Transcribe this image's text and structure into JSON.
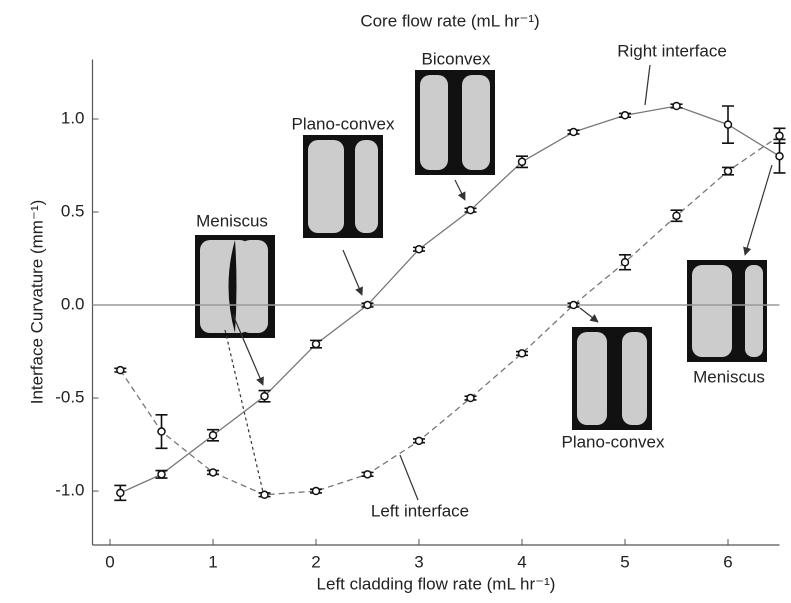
{
  "chart_data": {
    "type": "line",
    "top_axis_label": "Core flow rate (mL hr⁻¹)",
    "x_label": "Left cladding flow rate (mL hr⁻¹)",
    "y_label": "Interface Curvature (mm⁻¹)",
    "xlim": [
      -0.17,
      6.5
    ],
    "ylim": [
      -1.29,
      1.32
    ],
    "xticks": [
      0,
      1,
      2,
      3,
      4,
      5,
      6
    ],
    "yticks": [
      {
        "value": -1,
        "label": "-1.0"
      },
      -0.5,
      {
        "value": 0,
        "label": "0.0"
      },
      0.5,
      {
        "value": 1,
        "label": "1.0"
      }
    ],
    "zero_line": true,
    "x": [
      0.1,
      0.5,
      1,
      1.5,
      2,
      2.5,
      3,
      3.5,
      4,
      4.5,
      5,
      5.5,
      6,
      6.5
    ],
    "series": [
      {
        "name": "Right interface",
        "color": "#777777",
        "dash": false,
        "values": [
          -1.01,
          -0.91,
          -0.7,
          -0.49,
          -0.21,
          0,
          0.3,
          0.51,
          0.77,
          0.93,
          1.02,
          1.07,
          0.97,
          0.8
        ],
        "errors": [
          0.04,
          0.02,
          0.03,
          0.03,
          0.02,
          0.01,
          0.01,
          0.01,
          0.03,
          0.01,
          0.01,
          0.01,
          0.1,
          0.09
        ]
      },
      {
        "name": "Left interface",
        "color": "#777777",
        "dash": true,
        "values": [
          -0.35,
          -0.68,
          -0.9,
          -1.02,
          -1,
          -0.91,
          -0.73,
          -0.5,
          -0.26,
          0,
          0.23,
          0.48,
          0.72,
          0.91
        ],
        "errors": [
          0.01,
          0.09,
          0.01,
          0.01,
          0.01,
          0.01,
          0.01,
          0.01,
          0.01,
          0.01,
          0.04,
          0.03,
          0.02,
          0.04
        ]
      }
    ],
    "annotations": [
      "Meniscus",
      "Plano-convex",
      "Biconvex",
      "Right interface",
      "Left interface",
      "Plano-convex",
      "Meniscus"
    ]
  }
}
